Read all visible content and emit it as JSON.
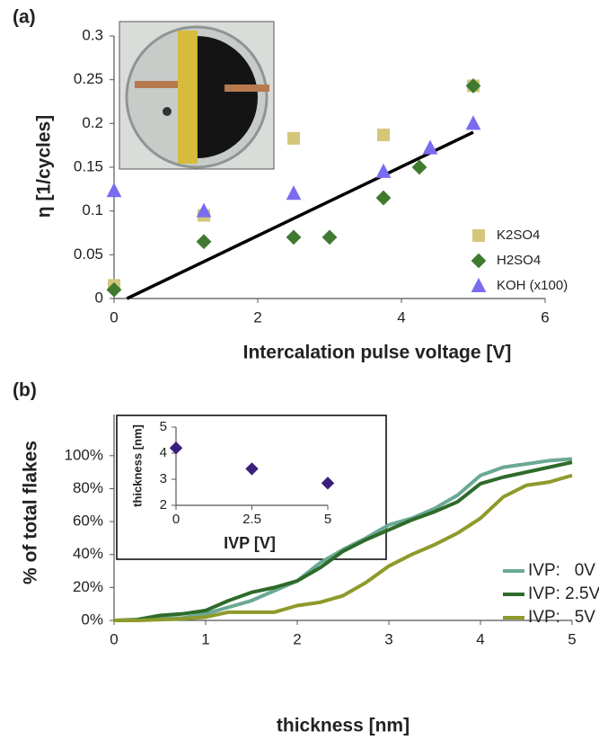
{
  "chart_data": [
    {
      "type": "scatter",
      "panel_label": "(a)",
      "ylabel": "η [1/cycles]",
      "xlabel": "Intercalation pulse voltage [V]",
      "xlim": [
        0,
        6
      ],
      "xticks": [
        0,
        2,
        4,
        6
      ],
      "ylim": [
        0,
        0.3
      ],
      "yticks": [
        0,
        0.05,
        0.1,
        0.15,
        0.2,
        0.25,
        0.3
      ],
      "series": [
        {
          "name": "K2SO4",
          "color": "#d4c77a",
          "marker": "square",
          "x": [
            0,
            1.25,
            2.5,
            3.75,
            5
          ],
          "values": [
            0.015,
            0.095,
            0.183,
            0.187,
            0.243
          ]
        },
        {
          "name": "H2SO4",
          "color": "#3f7a30",
          "marker": "diamond",
          "x": [
            0,
            1.25,
            2.5,
            3,
            3.75,
            4.25,
            5
          ],
          "values": [
            0.01,
            0.065,
            0.07,
            0.07,
            0.115,
            0.15,
            0.243
          ]
        },
        {
          "name": "KOH (x100)",
          "color": "#7a6cf0",
          "marker": "triangle",
          "x": [
            0,
            1.25,
            2.5,
            3.75,
            4.4,
            5
          ],
          "values": [
            0.123,
            0.1,
            0.12,
            0.145,
            0.172,
            0.2
          ]
        }
      ],
      "fit_line": {
        "color": "#000000",
        "x": [
          0.18,
          5
        ],
        "values": [
          0,
          0.19
        ]
      }
    },
    {
      "type": "line",
      "panel_label": "(b)",
      "ylabel": "% of total flakes",
      "xlabel": "thickness [nm]",
      "xlim": [
        0,
        5
      ],
      "xticks": [
        0,
        1,
        2,
        3,
        4,
        5
      ],
      "ylim": [
        0,
        125
      ],
      "yticks": [
        {
          "value": 0,
          "label": "0%"
        },
        {
          "value": 20,
          "label": "20%"
        },
        {
          "value": 40,
          "label": "40%"
        },
        {
          "value": 60,
          "label": "60%"
        },
        {
          "value": 80,
          "label": "80%"
        },
        {
          "value": 100,
          "label": "100%"
        }
      ],
      "x": [
        0,
        0.25,
        0.5,
        0.75,
        1,
        1.25,
        1.5,
        1.75,
        2,
        2.25,
        2.5,
        2.75,
        3,
        3.25,
        3.5,
        3.75,
        4,
        4.25,
        4.5,
        4.75,
        5
      ],
      "series": [
        {
          "name": "IVP:   0V",
          "color": "#6aa994",
          "values": [
            0,
            0,
            1,
            1.5,
            4,
            8,
            12,
            18,
            24,
            35,
            43,
            50,
            58,
            62,
            68,
            76,
            88,
            93,
            95,
            97,
            98
          ]
        },
        {
          "name": "IVP: 2.5V",
          "color": "#2e6b2a",
          "values": [
            0,
            0.5,
            3,
            4,
            6,
            12,
            17,
            20,
            24,
            32,
            42,
            49,
            55,
            61,
            66,
            72,
            83,
            87,
            90,
            93,
            96
          ]
        },
        {
          "name": "IVP:   5V",
          "color": "#8f9a2a",
          "values": [
            0,
            0,
            0.5,
            1,
            2,
            5,
            5,
            5,
            9,
            11,
            15,
            23,
            33,
            40,
            46,
            53,
            62,
            75,
            82,
            84,
            88
          ]
        }
      ]
    },
    {
      "type": "scatter",
      "ylabel": "thickness [nm]",
      "xlabel": "IVP [V]",
      "xlim": [
        0,
        5
      ],
      "xticks": [
        0,
        2.5,
        5
      ],
      "ylim": [
        2,
        5
      ],
      "yticks": [
        2,
        3,
        4,
        5
      ],
      "series": [
        {
          "color": "#3b1f7a",
          "marker": "diamond",
          "x": [
            0,
            2.5,
            5
          ],
          "values": [
            4.2,
            3.4,
            2.85
          ]
        }
      ]
    }
  ]
}
